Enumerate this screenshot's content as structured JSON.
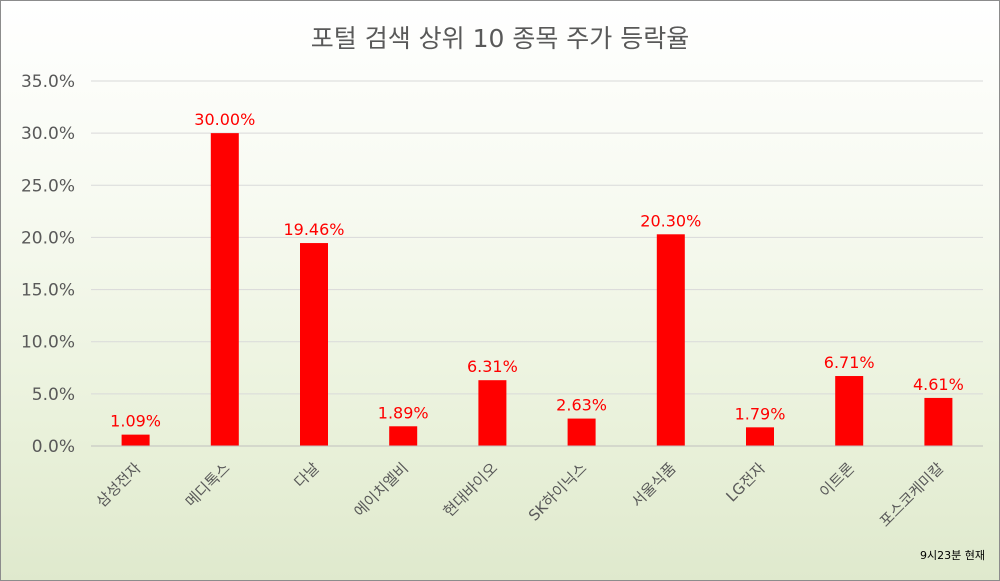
{
  "chart_data": {
    "type": "bar",
    "title": "포털 검색 상위 10 종목 주가 등락율",
    "categories": [
      "삼성전자",
      "메디톡스",
      "다날",
      "에이치엘비",
      "현대바이오",
      "SK하이닉스",
      "서울식품",
      "LG전자",
      "이트론",
      "포스코케미칼"
    ],
    "values": [
      1.09,
      30.0,
      19.46,
      1.89,
      6.31,
      2.63,
      20.3,
      1.79,
      6.71,
      4.61
    ],
    "data_labels": [
      "1.09%",
      "30.00%",
      "19.46%",
      "1.89%",
      "6.31%",
      "2.63%",
      "20.30%",
      "1.79%",
      "6.71%",
      "4.61%"
    ],
    "y_ticks": [
      "0.0%",
      "5.0%",
      "10.0%",
      "15.0%",
      "20.0%",
      "25.0%",
      "30.0%",
      "35.0%"
    ],
    "ylim": [
      0,
      35
    ],
    "grid": true,
    "legend": "none",
    "bar_color": "#ff0000",
    "label_color": "#ff0000",
    "note": "9시23분 현재"
  }
}
